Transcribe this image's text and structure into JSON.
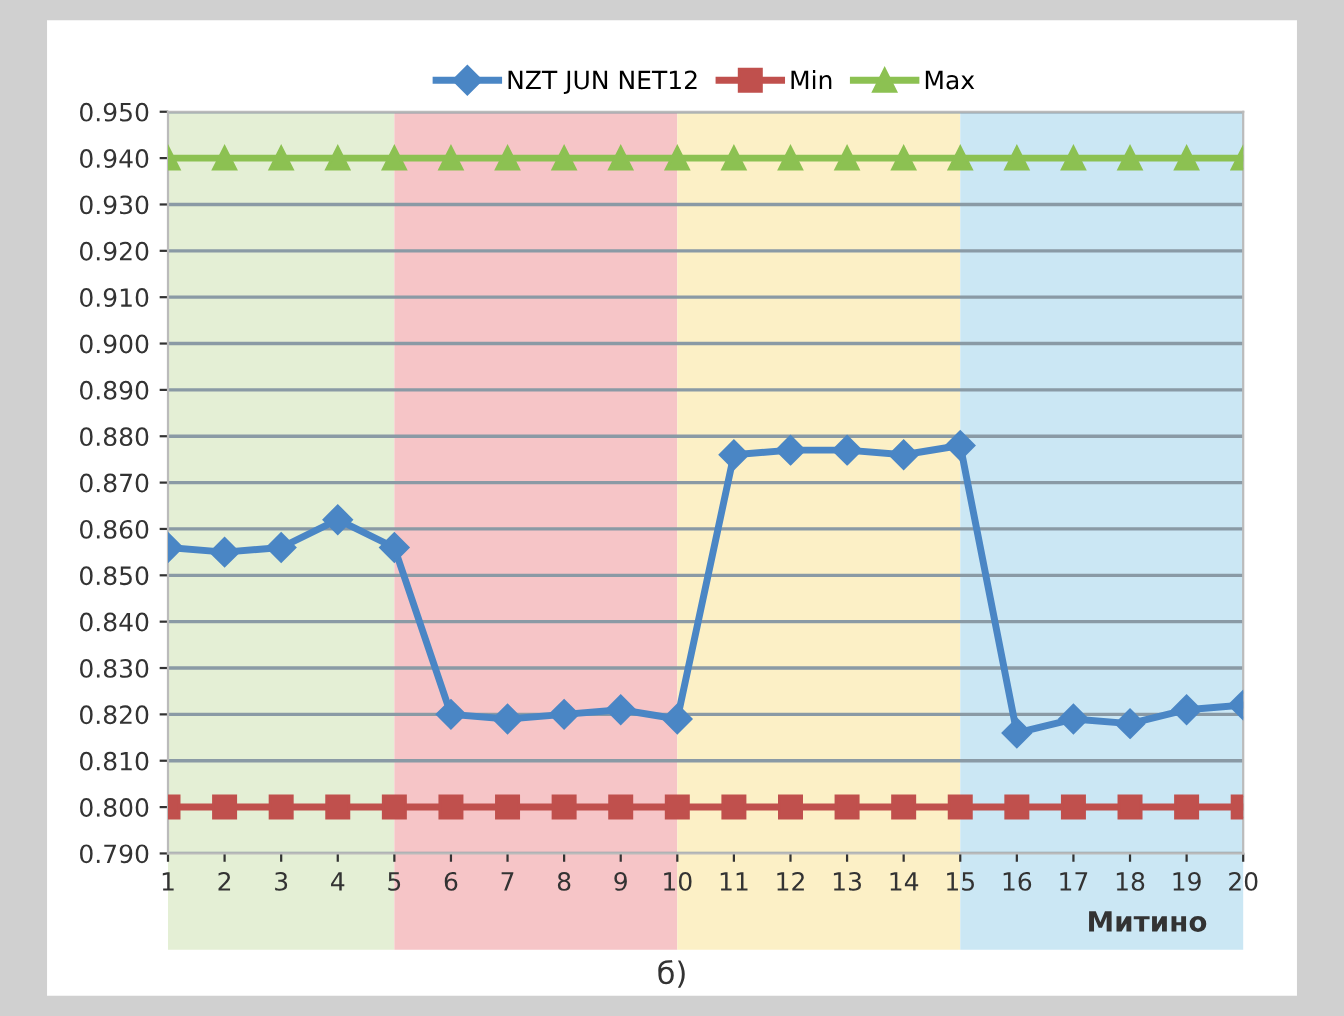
{
  "chart_data": {
    "type": "line",
    "x": [
      1,
      2,
      3,
      4,
      5,
      6,
      7,
      8,
      9,
      10,
      11,
      12,
      13,
      14,
      15,
      16,
      17,
      18,
      19,
      20
    ],
    "series": [
      {
        "name": "NZT JUN NET12",
        "color": "#4a86c5",
        "marker": "diamond",
        "values": [
          0.856,
          0.855,
          0.856,
          0.862,
          0.856,
          0.82,
          0.819,
          0.82,
          0.821,
          0.819,
          0.876,
          0.877,
          0.877,
          0.876,
          0.878,
          0.816,
          0.819,
          0.818,
          0.821,
          0.822
        ]
      },
      {
        "name": "Min",
        "color": "#c0504d",
        "marker": "square",
        "values": [
          0.8,
          0.8,
          0.8,
          0.8,
          0.8,
          0.8,
          0.8,
          0.8,
          0.8,
          0.8,
          0.8,
          0.8,
          0.8,
          0.8,
          0.8,
          0.8,
          0.8,
          0.8,
          0.8,
          0.8
        ]
      },
      {
        "name": "Max",
        "color": "#8cc152",
        "marker": "triangle",
        "values": [
          0.94,
          0.94,
          0.94,
          0.94,
          0.94,
          0.94,
          0.94,
          0.94,
          0.94,
          0.94,
          0.94,
          0.94,
          0.94,
          0.94,
          0.94,
          0.94,
          0.94,
          0.94,
          0.94,
          0.94
        ]
      }
    ],
    "bands": [
      {
        "axis": "x",
        "from": 1,
        "to": 5,
        "label": null,
        "color": "#e4efd5"
      },
      {
        "axis": "x",
        "from": 5,
        "to": 10,
        "label": null,
        "color": "#f6c5c7"
      },
      {
        "axis": "x",
        "from": 10,
        "to": 15,
        "label": null,
        "color": "#fcf0c6"
      },
      {
        "axis": "x",
        "from": 15,
        "to": 20,
        "label": "Митино",
        "color": "#cbe7f4"
      }
    ],
    "xlim": [
      1,
      20
    ],
    "xticks": [
      1,
      2,
      3,
      4,
      5,
      6,
      7,
      8,
      9,
      10,
      11,
      12,
      13,
      14,
      15,
      16,
      17,
      18,
      19,
      20
    ],
    "ylim": [
      0.79,
      0.95
    ],
    "yticks": [
      {
        "value": 0.79,
        "label": "0.790"
      },
      {
        "value": 0.8,
        "label": "0.800"
      },
      {
        "value": 0.81,
        "label": "0.810"
      },
      {
        "value": 0.82,
        "label": "0.820"
      },
      {
        "value": 0.83,
        "label": "0.830"
      },
      {
        "value": 0.84,
        "label": "0.840"
      },
      {
        "value": 0.85,
        "label": "0.850"
      },
      {
        "value": 0.86,
        "label": "0.860"
      },
      {
        "value": 0.87,
        "label": "0.870"
      },
      {
        "value": 0.88,
        "label": "0.880"
      },
      {
        "value": 0.89,
        "label": "0.890"
      },
      {
        "value": 0.9,
        "label": "0.900"
      },
      {
        "value": 0.91,
        "label": "0.910"
      },
      {
        "value": 0.92,
        "label": "0.920"
      },
      {
        "value": 0.93,
        "label": "0.930"
      },
      {
        "value": 0.94,
        "label": "0.940"
      },
      {
        "value": 0.95,
        "label": "0.950"
      }
    ],
    "grid": "y",
    "legend": "top",
    "line_style": "solid",
    "annotations": [
      "б)"
    ]
  }
}
